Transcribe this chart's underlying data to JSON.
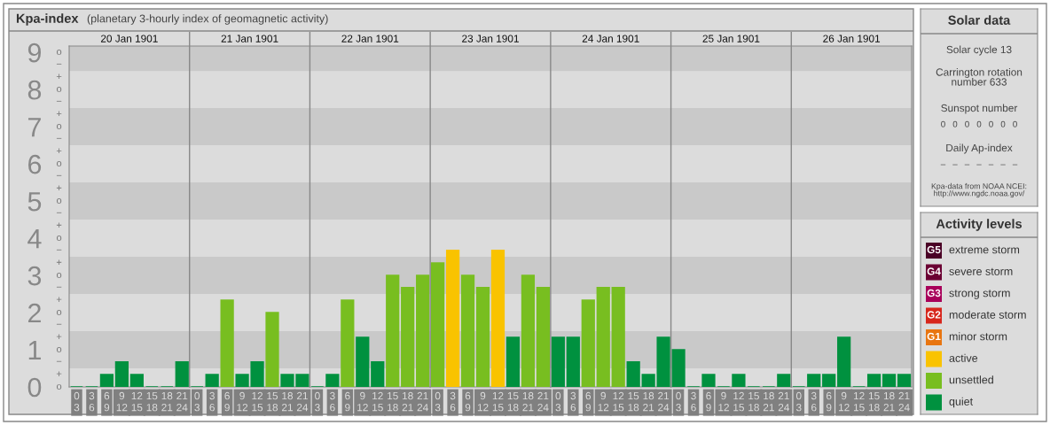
{
  "chart_data": [
    {
      "type": "bar",
      "title": "Kpa-index",
      "subtitle": "(planetary 3-hourly index of geomagnetic activity)",
      "categories": [
        "0\n3",
        "3\n6",
        "6\n9",
        "9\n12",
        "12\n15",
        "15\n18",
        "18\n21",
        "21\n24",
        "0\n3",
        "3\n6",
        "6\n9",
        "9\n12",
        "12\n15",
        "15\n18",
        "18\n21",
        "21\n24",
        "0\n3",
        "3\n6",
        "6\n9",
        "9\n12",
        "12\n15",
        "15\n18",
        "18\n21",
        "21\n24",
        "0\n3",
        "3\n6",
        "6\n9",
        "9\n12",
        "12\n15",
        "15\n18",
        "18\n21",
        "21\n24",
        "0\n3",
        "3\n6",
        "6\n9",
        "9\n12",
        "12\n15",
        "15\n18",
        "18\n21",
        "21\n24",
        "0\n3",
        "3\n6",
        "6\n9",
        "9\n12",
        "12\n15",
        "15\n18",
        "18\n21",
        "21\n24",
        "0\n3",
        "3\n6",
        "6\n9",
        "9\n12",
        "12\n15",
        "15\n18",
        "18\n21",
        "21\n24"
      ],
      "values": [
        0,
        0,
        0.33,
        0.67,
        0.33,
        0,
        0,
        0.67,
        0,
        0.33,
        2.33,
        0.33,
        0.67,
        2,
        0.33,
        0.33,
        0,
        0.33,
        2.33,
        1.33,
        0.67,
        3,
        2.67,
        3,
        3.33,
        3.67,
        3,
        2.67,
        3.67,
        1.33,
        3,
        2.67,
        1.33,
        1.33,
        2.33,
        2.67,
        2.67,
        0.67,
        0.33,
        1.33,
        1,
        0,
        0.33,
        0,
        0.33,
        0,
        0,
        0.33,
        0,
        0.33,
        0.33,
        1.33,
        0,
        0.33,
        0.33,
        0.33
      ],
      "colors": [
        "#00913f",
        "#00913f",
        "#00913f",
        "#00913f",
        "#00913f",
        "#00913f",
        "#00913f",
        "#00913f",
        "#00913f",
        "#00913f",
        "#78be20",
        "#00913f",
        "#00913f",
        "#78be20",
        "#00913f",
        "#00913f",
        "#00913f",
        "#00913f",
        "#78be20",
        "#00913f",
        "#00913f",
        "#78be20",
        "#78be20",
        "#78be20",
        "#78be20",
        "#f9c300",
        "#78be20",
        "#78be20",
        "#f9c300",
        "#00913f",
        "#78be20",
        "#78be20",
        "#00913f",
        "#00913f",
        "#78be20",
        "#78be20",
        "#78be20",
        "#00913f",
        "#00913f",
        "#00913f",
        "#00913f",
        "#00913f",
        "#00913f",
        "#00913f",
        "#00913f",
        "#00913f",
        "#00913f",
        "#00913f",
        "#00913f",
        "#00913f",
        "#00913f",
        "#00913f",
        "#00913f",
        "#00913f",
        "#00913f",
        "#00913f"
      ],
      "ylim": [
        0,
        9.17
      ],
      "yticks": [
        0,
        1,
        2,
        3,
        4,
        5,
        6,
        7,
        8,
        9
      ],
      "bands": [
        {
          "axis": "y",
          "from": 0.5,
          "to": 1.5,
          "color": "#c9c9c9"
        },
        {
          "axis": "y",
          "from": 2.5,
          "to": 3.5,
          "color": "#c9c9c9"
        },
        {
          "axis": "y",
          "from": 4.5,
          "to": 5.5,
          "color": "#c9c9c9"
        },
        {
          "axis": "y",
          "from": 6.5,
          "to": 7.5,
          "color": "#c9c9c9"
        },
        {
          "axis": "y",
          "from": 8.5,
          "to": 9.17,
          "color": "#c9c9c9"
        }
      ],
      "annotations": [
        "20 Jan 1901",
        "21 Jan 1901",
        "22 Jan 1901",
        "23 Jan 1901",
        "24 Jan 1901",
        "25 Jan 1901",
        "26 Jan 1901",
        "o",
        "+",
        "−",
        "o",
        "+",
        "−",
        "o",
        "+",
        "−",
        "o",
        "+",
        "−",
        "o",
        "+",
        "−",
        "o",
        "+",
        "−",
        "o",
        "+",
        "−",
        "o",
        "+",
        "−",
        "o",
        "+",
        "−",
        "o"
      ]
    },
    {
      "type": "other",
      "title": "Solar data",
      "annotations": [
        "Solar cycle 13",
        "Carrington rotation\nnumber 633",
        "Sunspot number",
        "0   0   0   0   0   0   0",
        "Daily Ap-index",
        "–   –   –   –   –   –   –",
        "Kpa-data from NOAA NCEI:\nhttp://www.ngdc.noaa.gov/"
      ]
    },
    {
      "type": "other",
      "title": "Activity levels",
      "categories": [
        "extreme storm",
        "severe storm",
        "strong storm",
        "moderate storm",
        "minor storm",
        "active",
        "unsettled",
        "quiet"
      ],
      "colors": [
        "#4a0026",
        "#6b0033",
        "#a8005a",
        "#d7261c",
        "#e87511",
        "#f9c300",
        "#78be20",
        "#00913f"
      ],
      "annotations": [
        "G5",
        "G4",
        "G3",
        "G2",
        "G1"
      ]
    }
  ]
}
